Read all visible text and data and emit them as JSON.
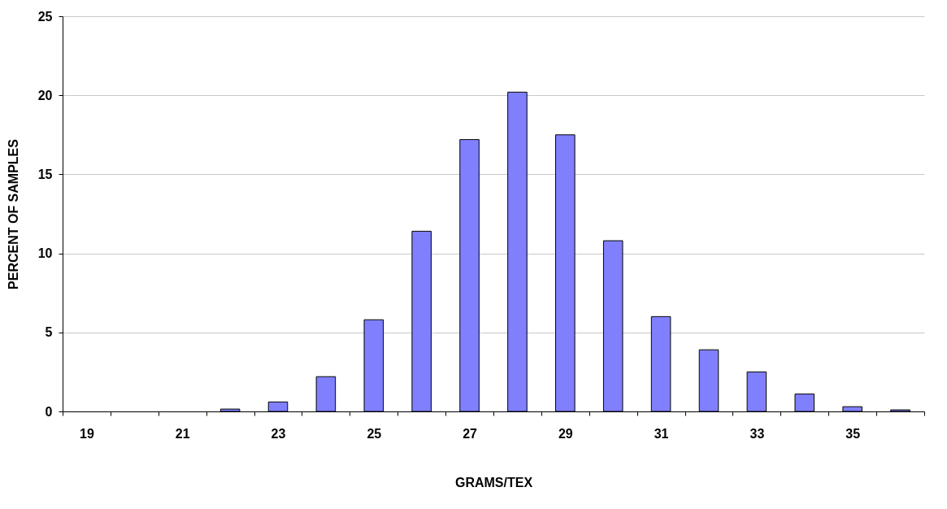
{
  "chart_data": {
    "type": "bar",
    "xlabel": "GRAMS/TEX",
    "ylabel": "PERCENT OF SAMPLES",
    "categories": [
      "19",
      null,
      "21",
      null,
      "23",
      null,
      "25",
      null,
      "27",
      null,
      "29",
      null,
      "31",
      null,
      "33",
      null,
      "35",
      null
    ],
    "values": [
      0,
      0,
      0,
      0.15,
      0.6,
      2.2,
      5.8,
      11.4,
      17.2,
      20.2,
      17.5,
      10.8,
      6.0,
      3.9,
      2.5,
      1.1,
      0.3,
      0.1
    ],
    "color": "#8080ff",
    "ylim": [
      0,
      25
    ],
    "yticks": [
      0,
      5,
      10,
      15,
      20,
      25
    ],
    "grid": "y"
  }
}
